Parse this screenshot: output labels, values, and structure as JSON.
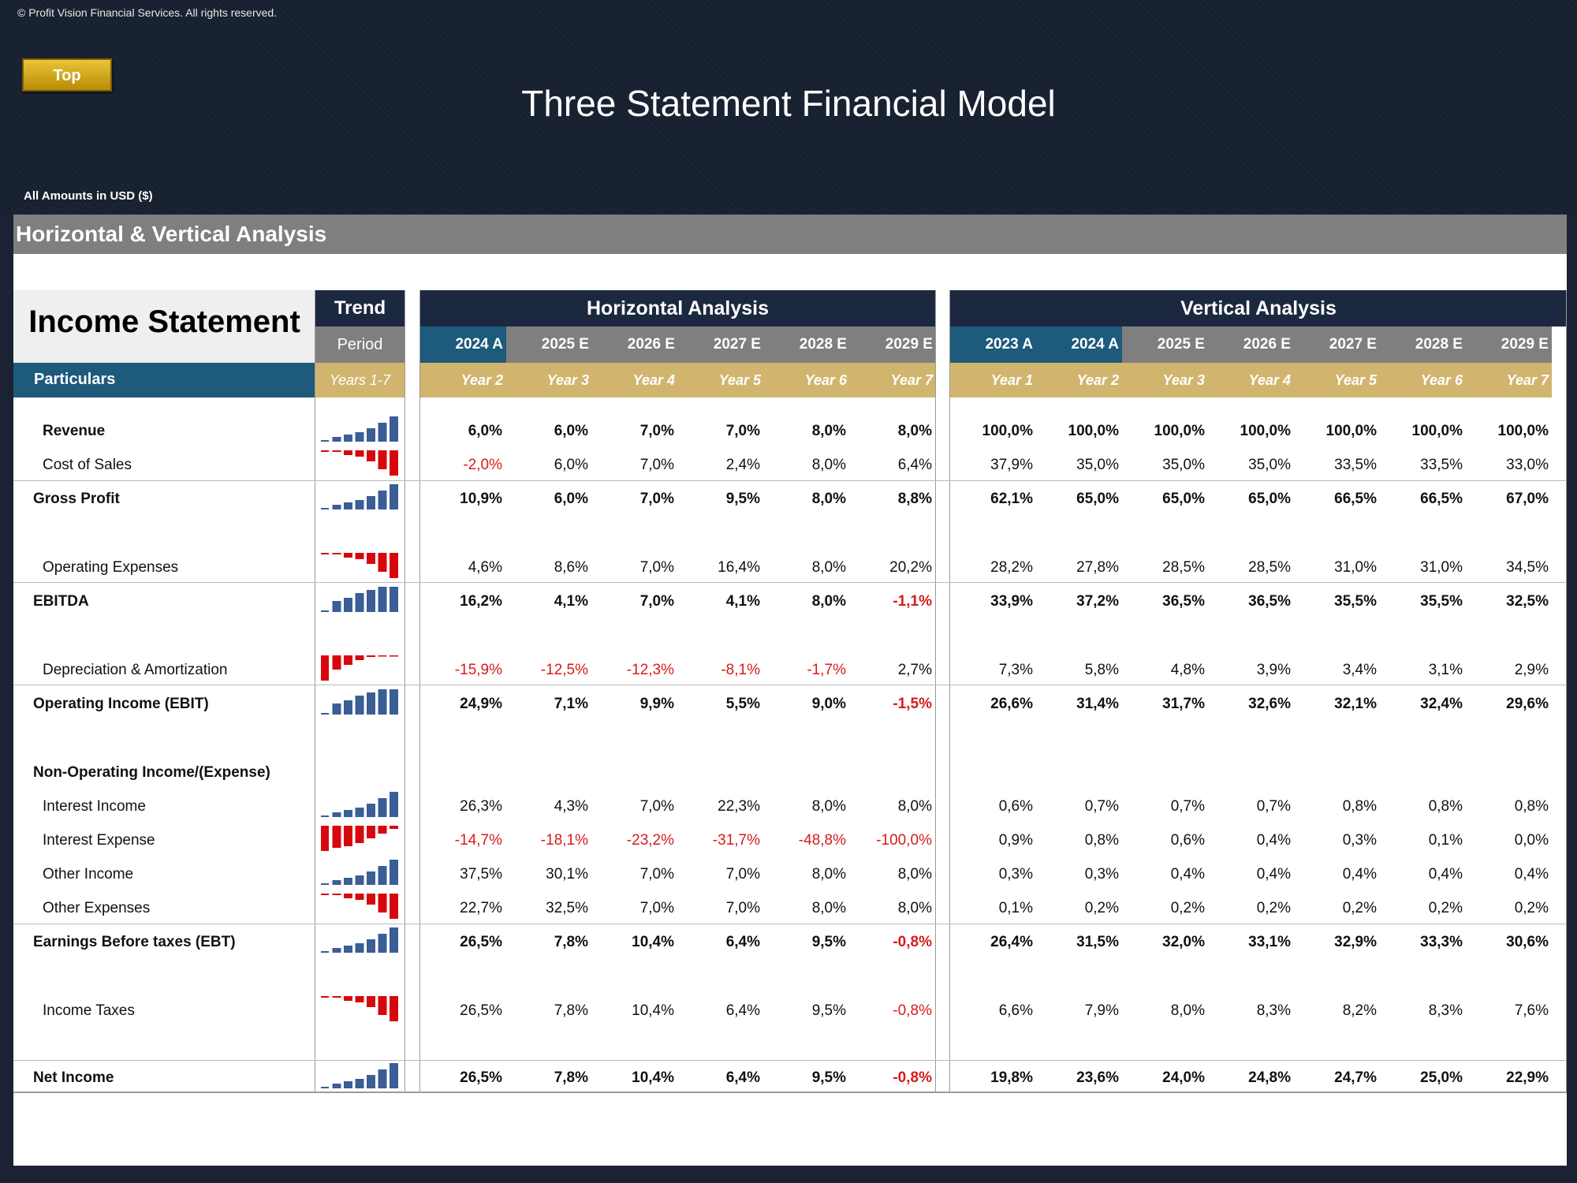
{
  "copyright": "© Profit Vision Financial Services. All rights reserved.",
  "top_button": "Top",
  "title": "Three Statement Financial Model",
  "amounts_label": "All Amounts in  USD ($)",
  "section_title": "Horizontal & Vertical Analysis",
  "income_statement_title": "Income Statement",
  "trend": {
    "header": "Trend",
    "period": "Period",
    "years": "Years 1-7"
  },
  "particulars": "Particulars",
  "horizontal": {
    "title": "Horizontal Analysis",
    "periods": [
      "2024 A",
      "2025 E",
      "2026 E",
      "2027 E",
      "2028 E",
      "2029 E"
    ],
    "years": [
      "Year 2",
      "Year 3",
      "Year 4",
      "Year 5",
      "Year 6",
      "Year 7"
    ]
  },
  "vertical": {
    "title": "Vertical Analysis",
    "periods": [
      "2023 A",
      "2024 A",
      "2025 E",
      "2026 E",
      "2027 E",
      "2028 E",
      "2029 E"
    ],
    "years": [
      "Year 1",
      "Year 2",
      "Year 3",
      "Year 4",
      "Year 5",
      "Year 6",
      "Year 7"
    ]
  },
  "colors": {
    "positive_bar": "#3a5e95",
    "negative_bar": "#d7080d",
    "negative_text": "#d71b1b",
    "active_tab": "#1d5a7c",
    "gold": "#d1b56f"
  },
  "rows": [
    {
      "label": "Revenue",
      "bold": true,
      "indent": true,
      "spark": "up",
      "h": [
        "6,0%",
        "6,0%",
        "7,0%",
        "7,0%",
        "8,0%",
        "8,0%"
      ],
      "v": [
        "100,0%",
        "100,0%",
        "100,0%",
        "100,0%",
        "100,0%",
        "100,0%",
        "100,0%"
      ]
    },
    {
      "label": "Cost of Sales",
      "bold": false,
      "indent": true,
      "spark": "neg-up",
      "h": [
        "-2,0%",
        "6,0%",
        "7,0%",
        "2,4%",
        "8,0%",
        "6,4%"
      ],
      "v": [
        "37,9%",
        "35,0%",
        "35,0%",
        "35,0%",
        "33,5%",
        "33,5%",
        "33,0%"
      ]
    },
    {
      "label": "Gross Profit",
      "bold": true,
      "indent": false,
      "spark": "up",
      "h": [
        "10,9%",
        "6,0%",
        "7,0%",
        "9,5%",
        "8,0%",
        "8,8%"
      ],
      "v": [
        "62,1%",
        "65,0%",
        "65,0%",
        "65,0%",
        "66,5%",
        "66,5%",
        "67,0%"
      ]
    },
    {
      "label": "Operating Expenses",
      "bold": false,
      "indent": true,
      "spark": "neg-up",
      "h": [
        "4,6%",
        "8,6%",
        "7,0%",
        "16,4%",
        "8,0%",
        "20,2%"
      ],
      "v": [
        "28,2%",
        "27,8%",
        "28,5%",
        "28,5%",
        "31,0%",
        "31,0%",
        "34,5%"
      ]
    },
    {
      "label": "EBITDA",
      "bold": true,
      "indent": false,
      "spark": "up-flat",
      "h": [
        "16,2%",
        "4,1%",
        "7,0%",
        "4,1%",
        "8,0%",
        "-1,1%"
      ],
      "v": [
        "33,9%",
        "37,2%",
        "36,5%",
        "36,5%",
        "35,5%",
        "35,5%",
        "32,5%"
      ]
    },
    {
      "label": "Depreciation & Amortization",
      "bold": false,
      "indent": true,
      "spark": "neg-down",
      "h": [
        "-15,9%",
        "-12,5%",
        "-12,3%",
        "-8,1%",
        "-1,7%",
        "2,7%"
      ],
      "v": [
        "7,3%",
        "5,8%",
        "4,8%",
        "3,9%",
        "3,4%",
        "3,1%",
        "2,9%"
      ]
    },
    {
      "label": "Operating Income (EBIT)",
      "bold": true,
      "indent": false,
      "spark": "up-flat",
      "h": [
        "24,9%",
        "7,1%",
        "9,9%",
        "5,5%",
        "9,0%",
        "-1,5%"
      ],
      "v": [
        "26,6%",
        "31,4%",
        "31,7%",
        "32,6%",
        "32,1%",
        "32,4%",
        "29,6%"
      ]
    },
    {
      "label": "Non-Operating Income/(Expense)",
      "bold": true,
      "indent": false,
      "spark": "",
      "h": [
        "",
        "",
        "",
        "",
        "",
        ""
      ],
      "v": [
        "",
        "",
        "",
        "",
        "",
        "",
        ""
      ]
    },
    {
      "label": "Interest Income",
      "bold": false,
      "indent": true,
      "spark": "up",
      "h": [
        "26,3%",
        "4,3%",
        "7,0%",
        "22,3%",
        "8,0%",
        "8,0%"
      ],
      "v": [
        "0,6%",
        "0,7%",
        "0,7%",
        "0,7%",
        "0,8%",
        "0,8%",
        "0,8%"
      ]
    },
    {
      "label": "Interest Expense",
      "bold": false,
      "indent": true,
      "spark": "neg-down2",
      "h": [
        "-14,7%",
        "-18,1%",
        "-23,2%",
        "-31,7%",
        "-48,8%",
        "-100,0%"
      ],
      "v": [
        "0,9%",
        "0,8%",
        "0,6%",
        "0,4%",
        "0,3%",
        "0,1%",
        "0,0%"
      ]
    },
    {
      "label": "Other Income",
      "bold": false,
      "indent": true,
      "spark": "up",
      "h": [
        "37,5%",
        "30,1%",
        "7,0%",
        "7,0%",
        "8,0%",
        "8,0%"
      ],
      "v": [
        "0,3%",
        "0,3%",
        "0,4%",
        "0,4%",
        "0,4%",
        "0,4%",
        "0,4%"
      ]
    },
    {
      "label": "Other Expenses",
      "bold": false,
      "indent": true,
      "spark": "neg-up",
      "h": [
        "22,7%",
        "32,5%",
        "7,0%",
        "7,0%",
        "8,0%",
        "8,0%"
      ],
      "v": [
        "0,1%",
        "0,2%",
        "0,2%",
        "0,2%",
        "0,2%",
        "0,2%",
        "0,2%"
      ]
    },
    {
      "label": "Earnings Before taxes (EBT)",
      "bold": true,
      "indent": false,
      "spark": "up",
      "h": [
        "26,5%",
        "7,8%",
        "10,4%",
        "6,4%",
        "9,5%",
        "-0,8%"
      ],
      "v": [
        "26,4%",
        "31,5%",
        "32,0%",
        "33,1%",
        "32,9%",
        "33,3%",
        "30,6%"
      ]
    },
    {
      "label": "Income Taxes",
      "bold": false,
      "indent": true,
      "spark": "neg-up",
      "h": [
        "26,5%",
        "7,8%",
        "10,4%",
        "6,4%",
        "9,5%",
        "-0,8%"
      ],
      "v": [
        "6,6%",
        "7,9%",
        "8,0%",
        "8,3%",
        "8,2%",
        "8,3%",
        "7,6%"
      ]
    },
    {
      "label": "Net Income",
      "bold": true,
      "indent": false,
      "spark": "up",
      "h": [
        "26,5%",
        "7,8%",
        "10,4%",
        "6,4%",
        "9,5%",
        "-0,8%"
      ],
      "v": [
        "19,8%",
        "23,6%",
        "24,0%",
        "24,8%",
        "24,7%",
        "25,0%",
        "22,9%"
      ]
    }
  ]
}
